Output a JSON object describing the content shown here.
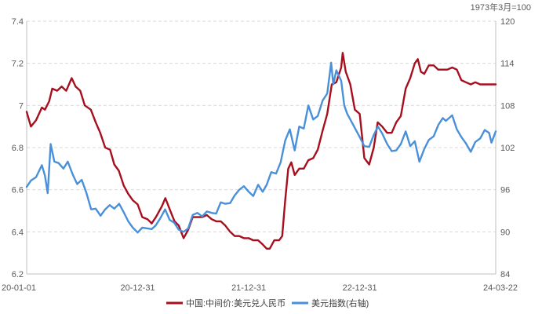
{
  "chart_data": {
    "type": "line",
    "unit_note": "1973年3月=100",
    "x_tick_labels": [
      "20-01-01",
      "20-12-31",
      "21-12-31",
      "22-12-31",
      "24-03-22"
    ],
    "x_range": [
      "2020-01-01",
      "2024-03-22"
    ],
    "left_axis": {
      "ylim": [
        6.2,
        7.4
      ],
      "ticks": [
        "6.2",
        "6.4",
        "6.6",
        "6.8",
        "7",
        "7.2",
        "7.4"
      ]
    },
    "right_axis": {
      "ylim": [
        84,
        120
      ],
      "ticks": [
        "84",
        "90",
        "96",
        "102",
        "108",
        "114",
        "120"
      ]
    },
    "grid": true,
    "legend_position": "bottom",
    "series": [
      {
        "name": "中国:中间价:美元兑人民币",
        "axis": "left",
        "color": "#a50f1e",
        "points": [
          [
            "2020-01-01",
            6.97
          ],
          [
            "2020-01-15",
            6.9
          ],
          [
            "2020-02-01",
            6.93
          ],
          [
            "2020-02-20",
            6.99
          ],
          [
            "2020-03-01",
            6.98
          ],
          [
            "2020-03-15",
            7.02
          ],
          [
            "2020-03-25",
            7.08
          ],
          [
            "2020-04-10",
            7.07
          ],
          [
            "2020-04-25",
            7.09
          ],
          [
            "2020-05-10",
            7.07
          ],
          [
            "2020-05-28",
            7.13
          ],
          [
            "2020-06-10",
            7.09
          ],
          [
            "2020-06-25",
            7.07
          ],
          [
            "2020-07-10",
            7.0
          ],
          [
            "2020-07-30",
            6.98
          ],
          [
            "2020-08-15",
            6.92
          ],
          [
            "2020-08-30",
            6.87
          ],
          [
            "2020-09-15",
            6.8
          ],
          [
            "2020-10-01",
            6.79
          ],
          [
            "2020-10-15",
            6.72
          ],
          [
            "2020-10-30",
            6.69
          ],
          [
            "2020-11-15",
            6.62
          ],
          [
            "2020-11-30",
            6.58
          ],
          [
            "2020-12-15",
            6.55
          ],
          [
            "2020-12-31",
            6.53
          ],
          [
            "2021-01-15",
            6.47
          ],
          [
            "2021-02-01",
            6.46
          ],
          [
            "2021-02-15",
            6.44
          ],
          [
            "2021-03-01",
            6.47
          ],
          [
            "2021-03-20",
            6.52
          ],
          [
            "2021-04-01",
            6.56
          ],
          [
            "2021-04-20",
            6.49
          ],
          [
            "2021-05-01",
            6.45
          ],
          [
            "2021-05-15",
            6.43
          ],
          [
            "2021-05-31",
            6.37
          ],
          [
            "2021-06-15",
            6.41
          ],
          [
            "2021-06-30",
            6.47
          ],
          [
            "2021-07-15",
            6.47
          ],
          [
            "2021-07-31",
            6.47
          ],
          [
            "2021-08-15",
            6.48
          ],
          [
            "2021-08-31",
            6.46
          ],
          [
            "2021-09-15",
            6.45
          ],
          [
            "2021-09-30",
            6.45
          ],
          [
            "2021-10-15",
            6.43
          ],
          [
            "2021-10-31",
            6.4
          ],
          [
            "2021-11-15",
            6.38
          ],
          [
            "2021-11-30",
            6.38
          ],
          [
            "2021-12-15",
            6.37
          ],
          [
            "2021-12-31",
            6.37
          ],
          [
            "2022-01-15",
            6.36
          ],
          [
            "2022-01-31",
            6.36
          ],
          [
            "2022-02-15",
            6.34
          ],
          [
            "2022-02-28",
            6.32
          ],
          [
            "2022-03-10",
            6.32
          ],
          [
            "2022-03-25",
            6.36
          ],
          [
            "2022-04-10",
            6.36
          ],
          [
            "2022-04-20",
            6.38
          ],
          [
            "2022-04-30",
            6.55
          ],
          [
            "2022-05-10",
            6.7
          ],
          [
            "2022-05-20",
            6.73
          ],
          [
            "2022-05-31",
            6.67
          ],
          [
            "2022-06-15",
            6.7
          ],
          [
            "2022-06-30",
            6.7
          ],
          [
            "2022-07-15",
            6.74
          ],
          [
            "2022-07-31",
            6.75
          ],
          [
            "2022-08-15",
            6.79
          ],
          [
            "2022-08-31",
            6.88
          ],
          [
            "2022-09-15",
            6.96
          ],
          [
            "2022-09-30",
            7.1
          ],
          [
            "2022-10-15",
            7.11
          ],
          [
            "2022-10-31",
            7.18
          ],
          [
            "2022-11-05",
            7.25
          ],
          [
            "2022-11-15",
            7.16
          ],
          [
            "2022-11-30",
            7.1
          ],
          [
            "2022-12-15",
            6.98
          ],
          [
            "2022-12-31",
            6.96
          ],
          [
            "2023-01-15",
            6.75
          ],
          [
            "2023-01-31",
            6.72
          ],
          [
            "2023-02-15",
            6.8
          ],
          [
            "2023-02-28",
            6.92
          ],
          [
            "2023-03-15",
            6.9
          ],
          [
            "2023-03-31",
            6.87
          ],
          [
            "2023-04-15",
            6.87
          ],
          [
            "2023-04-30",
            6.92
          ],
          [
            "2023-05-15",
            6.95
          ],
          [
            "2023-05-31",
            7.08
          ],
          [
            "2023-06-15",
            7.13
          ],
          [
            "2023-06-30",
            7.2
          ],
          [
            "2023-07-10",
            7.22
          ],
          [
            "2023-07-20",
            7.16
          ],
          [
            "2023-07-31",
            7.15
          ],
          [
            "2023-08-15",
            7.19
          ],
          [
            "2023-08-31",
            7.19
          ],
          [
            "2023-09-15",
            7.17
          ],
          [
            "2023-09-30",
            7.17
          ],
          [
            "2023-10-15",
            7.17
          ],
          [
            "2023-10-31",
            7.18
          ],
          [
            "2023-11-15",
            7.17
          ],
          [
            "2023-11-30",
            7.12
          ],
          [
            "2023-12-15",
            7.11
          ],
          [
            "2023-12-31",
            7.1
          ],
          [
            "2024-01-15",
            7.11
          ],
          [
            "2024-01-31",
            7.1
          ],
          [
            "2024-02-15",
            7.1
          ],
          [
            "2024-02-29",
            7.1
          ],
          [
            "2024-03-22",
            7.1
          ]
        ]
      },
      {
        "name": "美元指数(右轴)",
        "axis": "right",
        "color": "#4a90d9",
        "points": [
          [
            "2020-01-01",
            96.4
          ],
          [
            "2020-01-15",
            97.3
          ],
          [
            "2020-02-01",
            97.8
          ],
          [
            "2020-02-20",
            99.5
          ],
          [
            "2020-03-01",
            98.0
          ],
          [
            "2020-03-10",
            95.5
          ],
          [
            "2020-03-20",
            102.5
          ],
          [
            "2020-04-01",
            100.0
          ],
          [
            "2020-04-15",
            99.8
          ],
          [
            "2020-05-01",
            99.0
          ],
          [
            "2020-05-15",
            100.0
          ],
          [
            "2020-05-31",
            98.2
          ],
          [
            "2020-06-15",
            96.8
          ],
          [
            "2020-06-30",
            97.4
          ],
          [
            "2020-07-15",
            95.6
          ],
          [
            "2020-07-31",
            93.2
          ],
          [
            "2020-08-15",
            93.3
          ],
          [
            "2020-08-31",
            92.3
          ],
          [
            "2020-09-15",
            93.2
          ],
          [
            "2020-09-30",
            93.8
          ],
          [
            "2020-10-15",
            93.3
          ],
          [
            "2020-10-31",
            94.0
          ],
          [
            "2020-11-15",
            92.8
          ],
          [
            "2020-11-30",
            91.5
          ],
          [
            "2020-12-15",
            90.6
          ],
          [
            "2020-12-31",
            89.9
          ],
          [
            "2021-01-15",
            90.6
          ],
          [
            "2021-01-31",
            90.5
          ],
          [
            "2021-02-15",
            90.4
          ],
          [
            "2021-02-28",
            90.9
          ],
          [
            "2021-03-15",
            91.9
          ],
          [
            "2021-03-31",
            93.2
          ],
          [
            "2021-04-15",
            91.7
          ],
          [
            "2021-04-30",
            91.3
          ],
          [
            "2021-05-15",
            90.3
          ],
          [
            "2021-05-31",
            90.0
          ],
          [
            "2021-06-15",
            90.5
          ],
          [
            "2021-06-30",
            92.4
          ],
          [
            "2021-07-15",
            92.7
          ],
          [
            "2021-07-31",
            92.2
          ],
          [
            "2021-08-15",
            92.9
          ],
          [
            "2021-08-31",
            92.7
          ],
          [
            "2021-09-15",
            92.6
          ],
          [
            "2021-09-30",
            94.2
          ],
          [
            "2021-10-15",
            94.0
          ],
          [
            "2021-10-31",
            94.1
          ],
          [
            "2021-11-15",
            95.2
          ],
          [
            "2021-11-30",
            96.0
          ],
          [
            "2021-12-15",
            96.5
          ],
          [
            "2021-12-31",
            95.7
          ],
          [
            "2022-01-15",
            95.1
          ],
          [
            "2022-01-31",
            96.7
          ],
          [
            "2022-02-15",
            95.7
          ],
          [
            "2022-02-28",
            96.7
          ],
          [
            "2022-03-15",
            98.5
          ],
          [
            "2022-03-31",
            98.3
          ],
          [
            "2022-04-15",
            99.9
          ],
          [
            "2022-04-30",
            103.0
          ],
          [
            "2022-05-15",
            104.6
          ],
          [
            "2022-05-31",
            101.6
          ],
          [
            "2022-06-15",
            105.0
          ],
          [
            "2022-06-30",
            104.7
          ],
          [
            "2022-07-15",
            108.0
          ],
          [
            "2022-07-31",
            106.0
          ],
          [
            "2022-08-15",
            106.5
          ],
          [
            "2022-08-31",
            108.7
          ],
          [
            "2022-09-15",
            109.7
          ],
          [
            "2022-09-28",
            114.1
          ],
          [
            "2022-10-05",
            111.0
          ],
          [
            "2022-10-15",
            113.0
          ],
          [
            "2022-10-31",
            111.5
          ],
          [
            "2022-11-10",
            108.0
          ],
          [
            "2022-11-20",
            106.8
          ],
          [
            "2022-11-30",
            106.0
          ],
          [
            "2022-12-15",
            104.8
          ],
          [
            "2022-12-31",
            103.5
          ],
          [
            "2023-01-15",
            102.2
          ],
          [
            "2023-01-31",
            102.1
          ],
          [
            "2023-02-15",
            103.8
          ],
          [
            "2023-03-01",
            105.0
          ],
          [
            "2023-03-15",
            104.0
          ],
          [
            "2023-03-31",
            102.5
          ],
          [
            "2023-04-15",
            101.5
          ],
          [
            "2023-04-30",
            101.6
          ],
          [
            "2023-05-15",
            102.5
          ],
          [
            "2023-05-31",
            104.3
          ],
          [
            "2023-06-15",
            102.2
          ],
          [
            "2023-06-30",
            102.9
          ],
          [
            "2023-07-15",
            100.0
          ],
          [
            "2023-07-31",
            101.8
          ],
          [
            "2023-08-15",
            103.1
          ],
          [
            "2023-08-31",
            103.6
          ],
          [
            "2023-09-15",
            105.2
          ],
          [
            "2023-09-30",
            106.2
          ],
          [
            "2023-10-10",
            105.8
          ],
          [
            "2023-10-31",
            106.6
          ],
          [
            "2023-11-15",
            104.6
          ],
          [
            "2023-11-30",
            103.5
          ],
          [
            "2023-12-15",
            102.6
          ],
          [
            "2023-12-31",
            101.4
          ],
          [
            "2024-01-15",
            102.8
          ],
          [
            "2024-01-31",
            103.3
          ],
          [
            "2024-02-15",
            104.5
          ],
          [
            "2024-02-29",
            104.1
          ],
          [
            "2024-03-08",
            102.7
          ],
          [
            "2024-03-22",
            104.3
          ]
        ]
      }
    ]
  }
}
